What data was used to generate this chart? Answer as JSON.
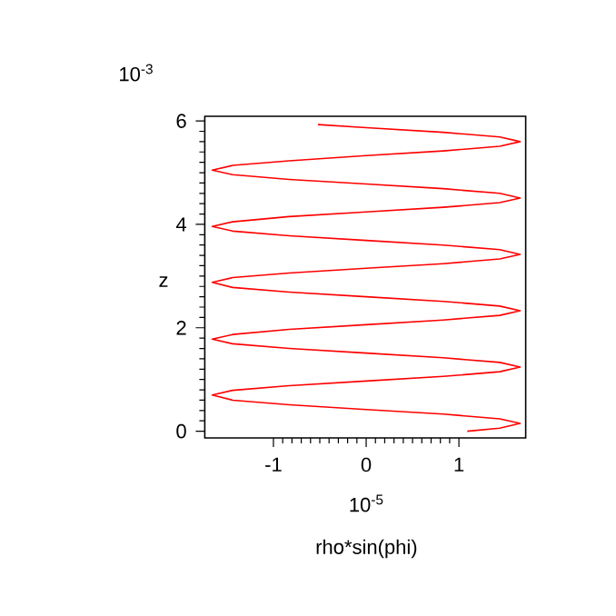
{
  "chart_data": {
    "type": "line",
    "xlabel": "rho*sin(phi)",
    "ylabel": "z",
    "annotations": [
      "10$^{-3}$",
      "10$^{-5}$"
    ],
    "xlim": [
      -1.74,
      1.72
    ],
    "ylim": [
      -0.13,
      6.09
    ],
    "xticks": [
      -1,
      0,
      1
    ],
    "yticks": [
      0,
      2,
      4,
      6
    ],
    "marker": "none",
    "line_style": "solid",
    "series": [
      {
        "color": "#ff0000",
        "x": [
          1.09,
          1.44,
          1.66,
          1.44,
          0.83,
          0,
          -0.83,
          -1.44,
          -1.66,
          -1.44,
          -0.83,
          0,
          0.83,
          1.44,
          1.66,
          1.44,
          0.83,
          0,
          -0.83,
          -1.44,
          -1.66,
          -1.44,
          -0.83,
          0,
          0.83,
          1.44,
          1.66,
          1.44,
          0.83,
          0,
          -0.83,
          -1.44,
          -1.66,
          -1.44,
          -0.83,
          0,
          0.83,
          1.44,
          1.66,
          1.44,
          0.83,
          0,
          -0.83,
          -1.44,
          -1.66,
          -1.44,
          -0.83,
          0,
          0.83,
          1.44,
          1.66,
          1.44,
          0.83,
          0,
          -0.83,
          -1.44,
          -1.66,
          -1.44,
          -0.83,
          0,
          0.83,
          1.44,
          1.66,
          1.44,
          0.83,
          0,
          -0.52
        ],
        "values": [
          0,
          0.06,
          0.15,
          0.24,
          0.33,
          0.42,
          0.51,
          0.6,
          0.7,
          0.79,
          0.88,
          0.97,
          1.06,
          1.15,
          1.24,
          1.33,
          1.42,
          1.51,
          1.6,
          1.69,
          1.78,
          1.87,
          1.97,
          2.06,
          2.15,
          2.24,
          2.33,
          2.42,
          2.51,
          2.6,
          2.69,
          2.78,
          2.88,
          2.97,
          3.06,
          3.15,
          3.24,
          3.33,
          3.42,
          3.51,
          3.6,
          3.69,
          3.78,
          3.87,
          3.96,
          4.05,
          4.15,
          4.24,
          4.33,
          4.42,
          4.51,
          4.6,
          4.69,
          4.78,
          4.87,
          4.96,
          5.05,
          5.14,
          5.23,
          5.33,
          5.42,
          5.51,
          5.6,
          5.69,
          5.78,
          5.87,
          5.93
        ]
      }
    ]
  }
}
